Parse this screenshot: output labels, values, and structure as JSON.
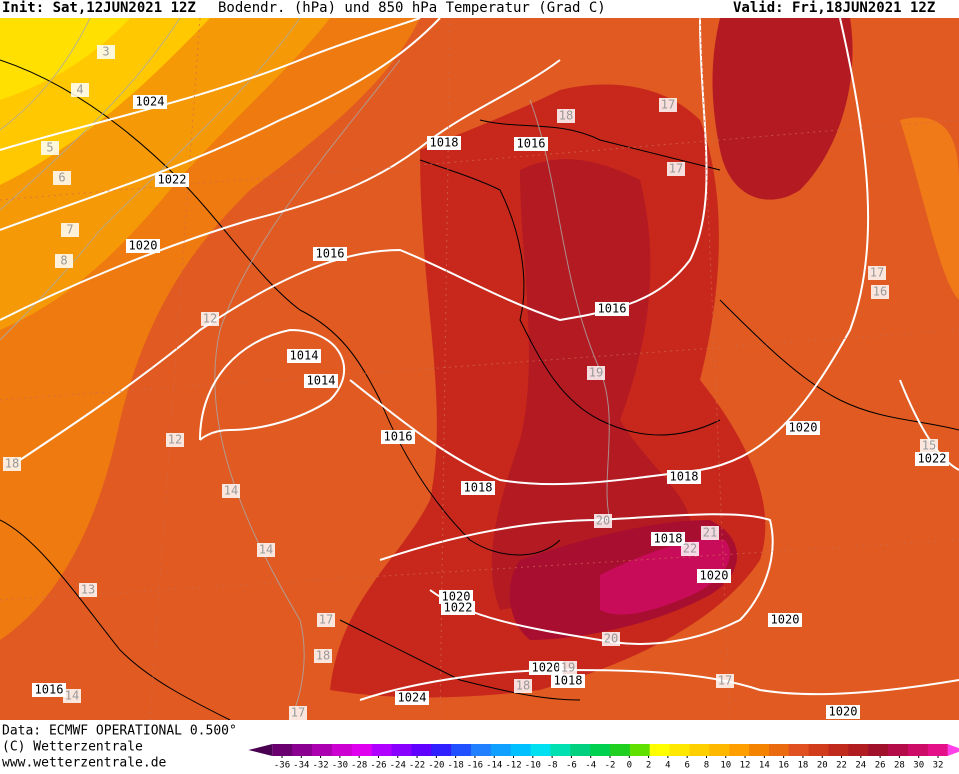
{
  "header": {
    "init": "Init: Sat,12JUN2021 12Z",
    "title": "Bodendr. (hPa) und 850 hPa Temperatur (Grad C)",
    "valid": "Valid: Fri,18JUN2021 12Z"
  },
  "map": {
    "isobar_labels": [
      1024,
      1018,
      1016,
      1022,
      1020,
      1016,
      1016,
      1014,
      1014,
      1016,
      1020,
      1022,
      1018,
      1018,
      1018,
      1020,
      1020,
      1022,
      1020,
      1020,
      1018,
      1016,
      1024,
      1020
    ],
    "temperature_labels": [
      3,
      4,
      5,
      6,
      7,
      8,
      12,
      12,
      14,
      14,
      13,
      17,
      18,
      17,
      14,
      18,
      17,
      17,
      17,
      16,
      19,
      15,
      18,
      20,
      21,
      22,
      20,
      19,
      18,
      17
    ]
  },
  "footer": {
    "data": "Data: ECMWF OPERATIONAL 0.500°",
    "copyright": "(C) Wetterzentrale",
    "url": "www.wetterzentrale.de"
  },
  "colorbar": {
    "ticks": [
      -36,
      -34,
      -32,
      -30,
      -28,
      -26,
      -24,
      -22,
      -20,
      -18,
      -16,
      -14,
      -12,
      -10,
      -8,
      -6,
      -4,
      -2,
      0,
      2,
      4,
      6,
      8,
      10,
      12,
      14,
      16,
      18,
      20,
      22,
      24,
      26,
      28,
      30,
      32
    ],
    "colors": [
      "#4a0050",
      "#6a0070",
      "#8a0090",
      "#aa00b0",
      "#cc00d0",
      "#e000f0",
      "#b000ff",
      "#8a00ff",
      "#6000ff",
      "#3020ff",
      "#2050ff",
      "#2080ff",
      "#10a0ff",
      "#00c0ff",
      "#00e0f0",
      "#00e0b0",
      "#00d080",
      "#00d050",
      "#20d020",
      "#60e000",
      "#ffff00",
      "#ffe800",
      "#ffd000",
      "#ffb800",
      "#ffa000",
      "#f48400",
      "#ea6a10",
      "#e05020",
      "#d03c1c",
      "#c02a1c",
      "#b01c20",
      "#a0102a",
      "#b40c48",
      "#cc0c66",
      "#e41088",
      "#ff40e8"
    ]
  }
}
